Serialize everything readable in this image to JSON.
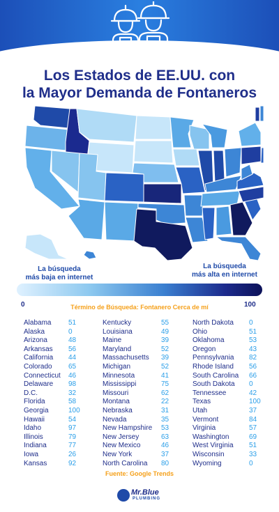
{
  "header": {
    "title_line1": "Los Estados de EE.UU. con",
    "title_line2": "la Mayor Demanda de Fontaneros"
  },
  "legend": {
    "low_line1": "La búsqueda",
    "low_line2": "más baja en internet",
    "high_line1": "La búsqueda",
    "high_line2": "más alta en internet",
    "min": "0",
    "max": "100",
    "term": "Término de Búsqueda: Fontanero Cerca de mí"
  },
  "colors": {
    "title": "#1f2e8a",
    "state_text": "#1f2e8a",
    "value_text": "#2a9ee8",
    "accent": "#f5a01a",
    "scale_low": "#dff1ff",
    "scale_high": "#0c1259"
  },
  "columns": [
    [
      {
        "state": "Alabama",
        "value": "51"
      },
      {
        "state": "Alaska",
        "value": "0"
      },
      {
        "state": "Arizona",
        "value": "48"
      },
      {
        "state": "Arkansas",
        "value": "56"
      },
      {
        "state": "California",
        "value": "44"
      },
      {
        "state": "Colorado",
        "value": "65"
      },
      {
        "state": "Connecticut",
        "value": "46"
      },
      {
        "state": "Delaware",
        "value": "98"
      },
      {
        "state": "D.C.",
        "value": "32"
      },
      {
        "state": "Florida",
        "value": "58"
      },
      {
        "state": "Georgia",
        "value": "100"
      },
      {
        "state": "Hawaii",
        "value": "54"
      },
      {
        "state": "Idaho",
        "value": "97"
      },
      {
        "state": "Illinois",
        "value": "79"
      },
      {
        "state": "Indiana",
        "value": "77"
      },
      {
        "state": "Iowa",
        "value": "26"
      },
      {
        "state": "Kansas",
        "value": "92"
      }
    ],
    [
      {
        "state": "Kentucky",
        "value": "55"
      },
      {
        "state": "Louisiana",
        "value": "49"
      },
      {
        "state": "Maine",
        "value": "39"
      },
      {
        "state": "Maryland",
        "value": "52"
      },
      {
        "state": "Massachusetts",
        "value": "39"
      },
      {
        "state": "Michigan",
        "value": "52"
      },
      {
        "state": "Minnesota",
        "value": "41"
      },
      {
        "state": "Mississippi",
        "value": "75"
      },
      {
        "state": "Missouri",
        "value": "62"
      },
      {
        "state": "Montana",
        "value": "22"
      },
      {
        "state": "Nebraska",
        "value": "31"
      },
      {
        "state": "Nevada",
        "value": "35"
      },
      {
        "state": "New Hampshire",
        "value": "53"
      },
      {
        "state": "New Jersey",
        "value": "63"
      },
      {
        "state": "New Mexico",
        "value": "46"
      },
      {
        "state": "New York",
        "value": "37"
      },
      {
        "state": "North Carolina",
        "value": "80"
      }
    ],
    [
      {
        "state": "North Dakota",
        "value": "0"
      },
      {
        "state": "Ohio",
        "value": "51"
      },
      {
        "state": "Oklahoma",
        "value": "53"
      },
      {
        "state": "Oregon",
        "value": "43"
      },
      {
        "state": "Pennsylvania",
        "value": "82"
      },
      {
        "state": "Rhode Island",
        "value": "56"
      },
      {
        "state": "South Carolina",
        "value": "66"
      },
      {
        "state": "South Dakota",
        "value": "0"
      },
      {
        "state": "Tennessee",
        "value": "42"
      },
      {
        "state": "Texas",
        "value": "100"
      },
      {
        "state": "Utah",
        "value": "37"
      },
      {
        "state": "Vermont",
        "value": "84"
      },
      {
        "state": "Virginia",
        "value": "57"
      },
      {
        "state": "Washington",
        "value": "69"
      },
      {
        "state": "West Virginia",
        "value": "51"
      },
      {
        "state": "Wisconsin",
        "value": "33"
      },
      {
        "state": "Wyoming",
        "value": "0"
      }
    ]
  ],
  "footer": {
    "source": "Fuente: Google Trends",
    "logo_name": "Mr.Blue",
    "logo_sub": "PLUMBING"
  }
}
